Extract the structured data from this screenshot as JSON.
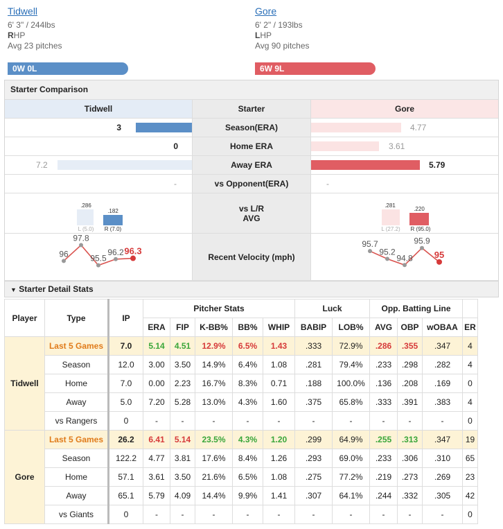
{
  "left_pitcher": {
    "name": "Tidwell",
    "hw": "6' 3\" / 244lbs",
    "hand_letter": "R",
    "hand_rest": "HP",
    "avg": "Avg 23 pitches",
    "record": "0W 0L",
    "color": "#5b8fc7"
  },
  "right_pitcher": {
    "name": "Gore",
    "hw": "6' 2\" / 193lbs",
    "hand_letter": "L",
    "hand_rest": "HP",
    "avg": "Avg 90 pitches",
    "record": "6W 9L",
    "color": "#e05d63"
  },
  "comparison": {
    "title": "Starter Comparison",
    "header": {
      "left": "Tidwell",
      "mid": "Starter",
      "right": "Gore"
    },
    "rows": [
      {
        "label": "Season(ERA)",
        "left": "3",
        "right": "4.77",
        "left_frac": 0.3,
        "right_frac": 0.54
      },
      {
        "label": "Home ERA",
        "left": "0",
        "right": "3.61",
        "left_frac": 0.0,
        "right_frac": 0.41
      },
      {
        "label": "Away ERA",
        "left": "7.2",
        "right": "5.79",
        "left_frac": 0.72,
        "right_frac": 0.66
      },
      {
        "label": "vs Opponent(ERA)",
        "left": "-",
        "right": "-"
      }
    ],
    "lr": {
      "label1": "vs L/R",
      "label2": "AVG",
      "left": {
        "l_val": ".286",
        "l_sub": "L (5.0)",
        "r_val": ".182",
        "r_sub": "R (7.0)"
      },
      "right": {
        "l_val": ".281",
        "l_sub": "L (27.2)",
        "r_val": ".220",
        "r_sub": "R (95.0)"
      }
    },
    "velo": {
      "label": "Recent Velocity (mph)",
      "left": [
        "96",
        "97.8",
        "95.5",
        "96.2",
        "96.3"
      ],
      "right": [
        "95.7",
        "95.2",
        "94.8",
        "95.9",
        "95"
      ]
    }
  },
  "details": {
    "title": "Starter Detail Stats",
    "headers": {
      "player": "Player",
      "type": "Type",
      "ip": "IP",
      "pitcher_stats": "Pitcher Stats",
      "luck": "Luck",
      "opp": "Opp. Batting Line",
      "cols": [
        "ERA",
        "FIP",
        "K-BB%",
        "BB%",
        "WHIP",
        "BABIP",
        "LOB%",
        "AVG",
        "OBP",
        "wOBAA",
        "ER"
      ]
    },
    "tidwell": {
      "player": "Tidwell",
      "rows": [
        {
          "type": "Last 5 Games",
          "ip": "7.0",
          "vals": [
            "5.14",
            "4.51",
            "12.9%",
            "6.5%",
            "1.43",
            ".333",
            "72.9%",
            ".286",
            ".355",
            ".347",
            "4"
          ]
        },
        {
          "type": "Season",
          "ip": "12.0",
          "vals": [
            "3.00",
            "3.50",
            "14.9%",
            "6.4%",
            "1.08",
            ".281",
            "79.4%",
            ".233",
            ".298",
            ".282",
            "4"
          ]
        },
        {
          "type": "Home",
          "ip": "7.0",
          "vals": [
            "0.00",
            "2.23",
            "16.7%",
            "8.3%",
            "0.71",
            ".188",
            "100.0%",
            ".136",
            ".208",
            ".169",
            "0"
          ]
        },
        {
          "type": "Away",
          "ip": "5.0",
          "vals": [
            "7.20",
            "5.28",
            "13.0%",
            "4.3%",
            "1.60",
            ".375",
            "65.8%",
            ".333",
            ".391",
            ".383",
            "4"
          ]
        },
        {
          "type": "vs Rangers",
          "ip": "0",
          "vals": [
            "-",
            "-",
            "-",
            "-",
            "-",
            "-",
            "-",
            "-",
            "-",
            "-",
            "0"
          ]
        }
      ]
    },
    "gore": {
      "player": "Gore",
      "rows": [
        {
          "type": "Last 5 Games",
          "ip": "26.2",
          "vals": [
            "6.41",
            "5.14",
            "23.5%",
            "4.3%",
            "1.20",
            ".299",
            "64.9%",
            ".255",
            ".313",
            ".347",
            "19"
          ]
        },
        {
          "type": "Season",
          "ip": "122.2",
          "vals": [
            "4.77",
            "3.81",
            "17.6%",
            "8.4%",
            "1.26",
            ".293",
            "69.0%",
            ".233",
            ".306",
            ".310",
            "65"
          ]
        },
        {
          "type": "Home",
          "ip": "57.1",
          "vals": [
            "3.61",
            "3.50",
            "21.6%",
            "6.5%",
            "1.08",
            ".275",
            "77.2%",
            ".219",
            ".273",
            ".269",
            "23"
          ]
        },
        {
          "type": "Away",
          "ip": "65.1",
          "vals": [
            "5.79",
            "4.09",
            "14.4%",
            "9.9%",
            "1.41",
            ".307",
            "64.1%",
            ".244",
            ".332",
            ".305",
            "42"
          ]
        },
        {
          "type": "vs Giants",
          "ip": "0",
          "vals": [
            "-",
            "-",
            "-",
            "-",
            "-",
            "-",
            "-",
            "-",
            "-",
            "-",
            "0"
          ]
        }
      ]
    }
  }
}
